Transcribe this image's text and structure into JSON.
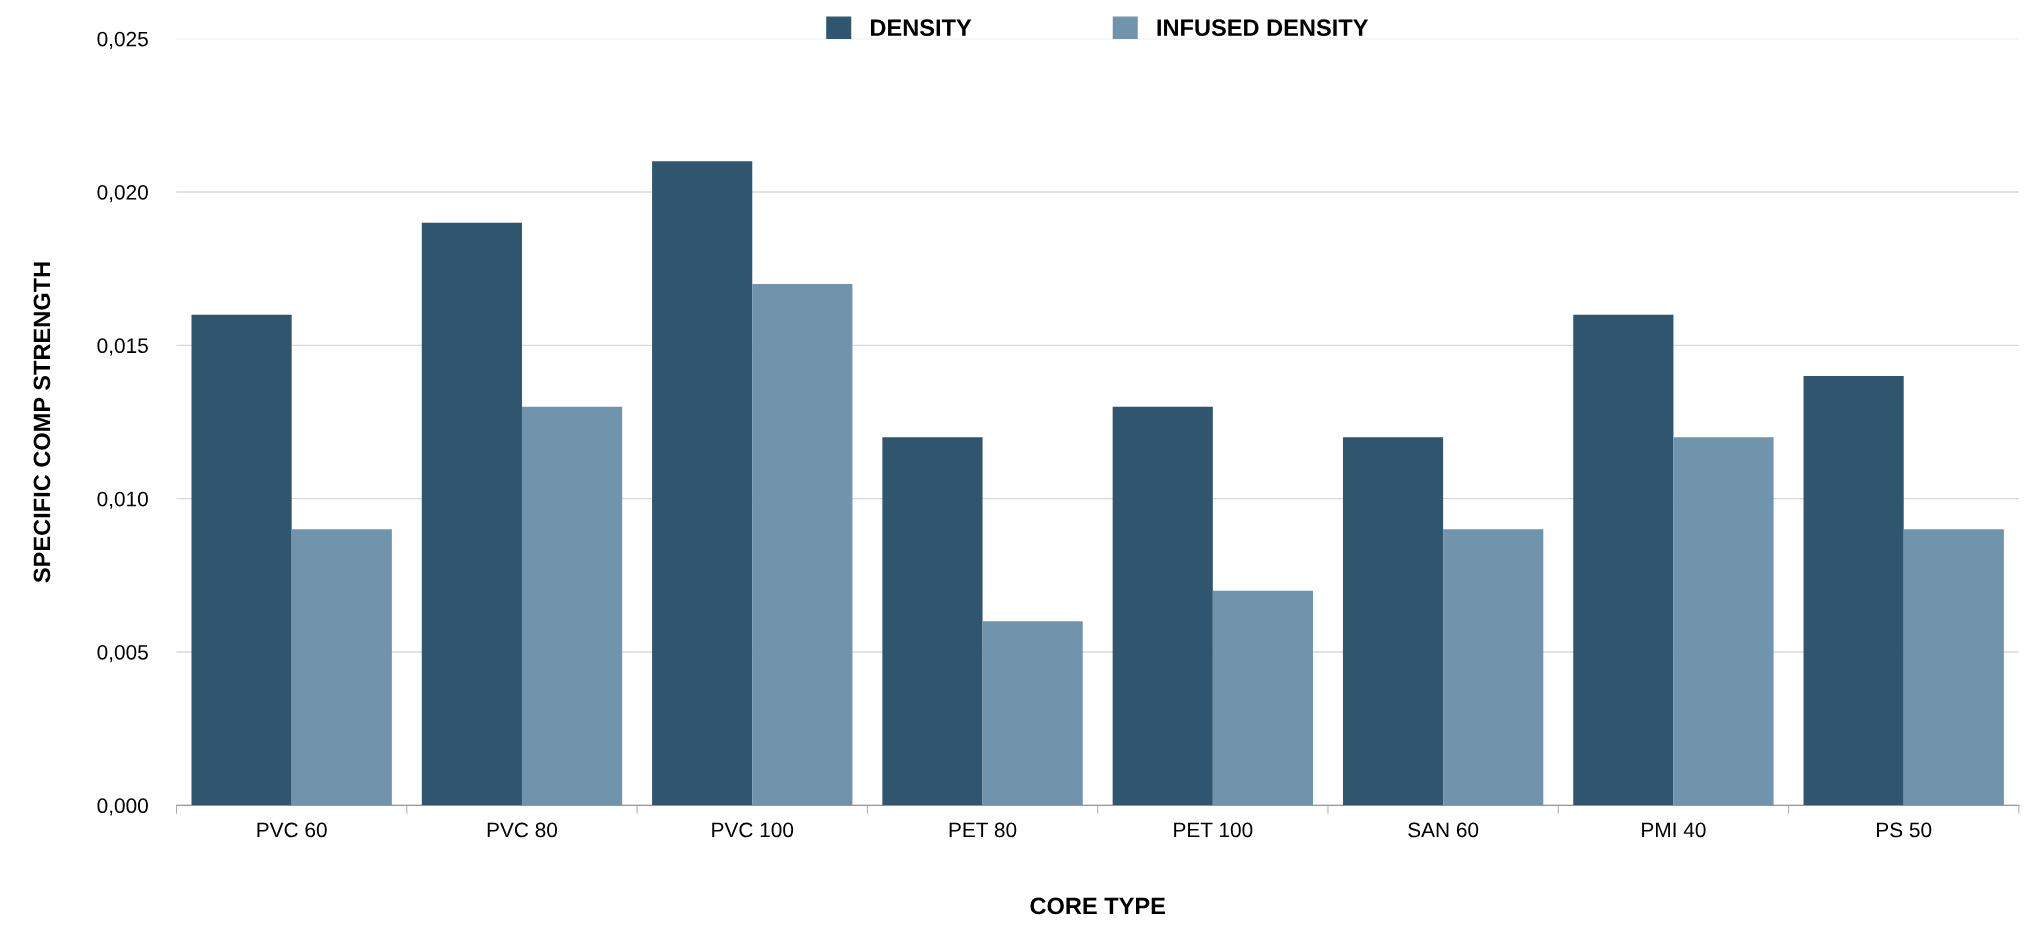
{
  "chart_data": {
    "type": "bar",
    "xlabel": "CORE TYPE",
    "ylabel": "SPECIFIC COMP STRENGTH",
    "categories": [
      "PVC 60",
      "PVC 80",
      "PVC 100",
      "PET 80",
      "PET 100",
      "SAN 60",
      "PMI 40",
      "PS 50"
    ],
    "series": [
      {
        "name": "DENSITY",
        "color": "#2f566e",
        "values": [
          0.016,
          0.019,
          0.021,
          0.012,
          0.013,
          0.012,
          0.016,
          0.014
        ]
      },
      {
        "name": "INFUSED DENSITY",
        "color": "#6f94ab",
        "values": [
          0.009,
          0.013,
          0.017,
          0.006,
          0.007,
          0.009,
          0.012,
          0.009
        ]
      }
    ],
    "ylim": [
      0,
      0.025
    ],
    "yticks": [
      {
        "value": 0,
        "label": "0,000"
      },
      {
        "value": 0.005,
        "label": "0,005"
      },
      {
        "value": 0.01,
        "label": "0,010"
      },
      {
        "value": 0.015,
        "label": "0,015"
      },
      {
        "value": 0.02,
        "label": "0,020"
      },
      {
        "value": 0.025,
        "label": "0,025"
      }
    ],
    "grid": "y",
    "legend": "top"
  }
}
